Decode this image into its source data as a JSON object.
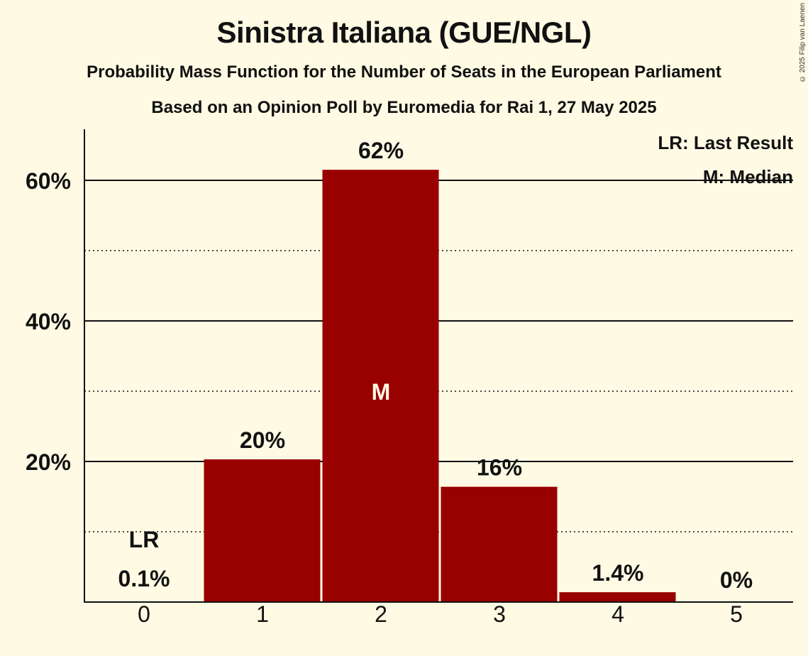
{
  "title": "Sinistra Italiana (GUE/NGL)",
  "subtitle": "Probability Mass Function for the Number of Seats in the European Parliament",
  "subtitle2": "Based on an Opinion Poll by Euromedia for Rai 1, 27 May 2025",
  "copyright": "© 2025 Filip van Laenen",
  "legend": {
    "lr": "LR: Last Result",
    "m": "M: Median"
  },
  "colors": {
    "bar": "#990000",
    "background": "#fefae3",
    "text": "#111111",
    "median_label": "#fefae3"
  },
  "chart_data": {
    "type": "bar",
    "title": "Sinistra Italiana (GUE/NGL)",
    "subtitle": "Probability Mass Function for the Number of Seats in the European Parliament",
    "xlabel": "",
    "ylabel": "",
    "categories": [
      "0",
      "1",
      "2",
      "3",
      "4",
      "5"
    ],
    "values": [
      0.1,
      20.3,
      61.5,
      16.4,
      1.4,
      0
    ],
    "value_labels": [
      "0.1%",
      "20%",
      "62%",
      "16%",
      "1.4%",
      "0%"
    ],
    "ylim": [
      0,
      67
    ],
    "yticks": [
      20,
      40,
      60
    ],
    "ytick_labels": [
      "20%",
      "40%",
      "60%"
    ],
    "minor_gridlines": [
      10,
      30,
      50
    ],
    "grid": true,
    "annotations": [
      {
        "category": "0",
        "label": "LR",
        "meaning": "Last Result"
      },
      {
        "category": "2",
        "label": "M",
        "meaning": "Median"
      }
    ],
    "legend_position": "top-right"
  }
}
